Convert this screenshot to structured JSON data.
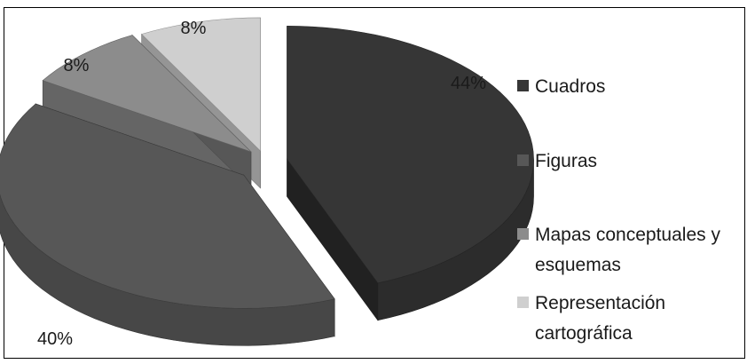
{
  "chart_data": {
    "type": "pie",
    "title": "",
    "categories": [
      "Cuadros",
      "Figuras",
      "Mapas conceptuales y esquemas",
      "Representación cartográfica"
    ],
    "values": [
      44,
      40,
      8,
      8
    ],
    "value_labels": [
      "44%",
      "40%",
      "8%",
      "8%"
    ],
    "legend_lines": [
      [
        "Cuadros"
      ],
      [
        "Figuras"
      ],
      [
        "Mapas conceptuales y",
        "esquemas"
      ],
      [
        "Representación",
        "cartográfica"
      ]
    ],
    "colors": [
      "#363636",
      "#575757",
      "#8c8c8c",
      "#cfcfcf"
    ],
    "style": "3d-exploded",
    "legend_position": "right"
  }
}
